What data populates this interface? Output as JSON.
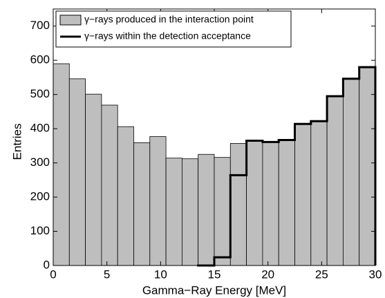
{
  "chart_data": {
    "type": "histogram",
    "xlabel": "Gamma−Ray Energy [MeV]",
    "ylabel": "Entries",
    "bins": [
      0,
      1.5,
      3,
      4.5,
      6,
      7.5,
      9,
      10.5,
      12,
      13.5,
      15,
      16.5,
      18,
      19.5,
      21,
      22.5,
      24,
      25.5,
      27,
      28.5,
      30
    ],
    "series": [
      {
        "name": "γ−rays produced in the interaction point",
        "color": "#bebebe",
        "style": "bar",
        "values": [
          590,
          546,
          501,
          469,
          406,
          359,
          377,
          314,
          312,
          325,
          316,
          357,
          365,
          361,
          367,
          414,
          422,
          495,
          546,
          580
        ]
      },
      {
        "name": "γ−rays within the detection acceptance",
        "color": "#000000",
        "style": "step",
        "values": [
          null,
          null,
          null,
          null,
          null,
          null,
          null,
          null,
          null,
          0,
          24,
          264,
          365,
          361,
          367,
          414,
          422,
          495,
          546,
          580
        ]
      }
    ],
    "xlim": [
      0,
      30
    ],
    "xticks": [
      0,
      5,
      10,
      15,
      20,
      25,
      30
    ],
    "ylim": [
      0,
      750
    ],
    "yticks": [
      0,
      100,
      200,
      300,
      400,
      500,
      600,
      700
    ],
    "legend": "upper-left"
  }
}
